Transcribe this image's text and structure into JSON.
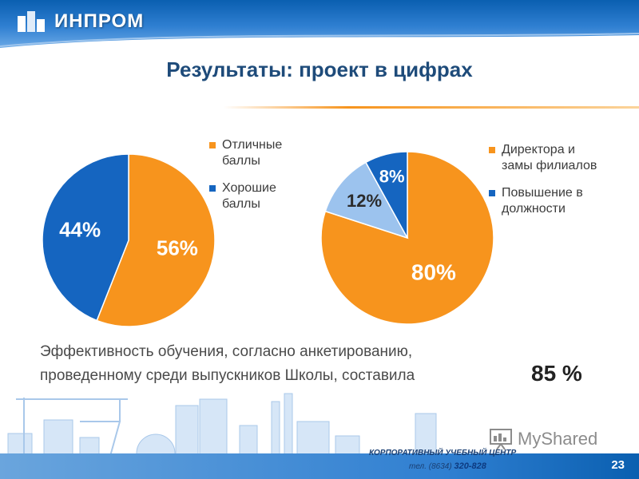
{
  "brand": {
    "name": "ИНПРОМ"
  },
  "title": "Результаты: проект в цифрах",
  "colors": {
    "orange": "#f7941d",
    "blue": "#1565c0",
    "light_blue": "#9cc3ee",
    "title": "#1e4b7a"
  },
  "chart_data": [
    {
      "type": "pie",
      "slices": [
        {
          "label": "Отличные баллы",
          "value": 56,
          "text": "56%",
          "color": "#f7941d"
        },
        {
          "label": "Хорошие баллы",
          "value": 44,
          "text": "44%",
          "color": "#1565c0"
        }
      ],
      "legend": [
        "Отличные баллы",
        "Хорошие баллы"
      ],
      "legend_position": "right"
    },
    {
      "type": "pie",
      "slices": [
        {
          "label": "Директора и замы филиалов",
          "value": 80,
          "text": "80%",
          "color": "#f7941d"
        },
        {
          "label": "",
          "value": 12,
          "text": "12%",
          "color": "#9cc3ee"
        },
        {
          "label": "Повышение в должности",
          "value": 8,
          "text": "8%",
          "color": "#1565c0"
        }
      ],
      "legend": [
        "Директора и замы филиалов",
        "Повышение в должности"
      ],
      "legend_position": "right"
    }
  ],
  "legend1": {
    "item1_line1": "Отличные",
    "item1_line2": "баллы",
    "item2_line1": "Хорошие",
    "item2_line2": "баллы"
  },
  "legend2": {
    "item1_line1": "Директора и",
    "item1_line2": "замы филиалов",
    "item2_line1": "Повышение в",
    "item2_line2": "должности"
  },
  "footnote": {
    "line1": "Эффективность обучения, согласно анкетированию,",
    "line2": "проведенному среди выпускников Школы, составила",
    "highlight": "85 %"
  },
  "footer": {
    "corporate": "КОРПОРАТИВНЫЙ УЧЕБНЫЙ ЦЕНТР",
    "phone_prefix": "тел. (8634)",
    "phone_number": "320-828",
    "watermark": "MyShared",
    "page_number": "23"
  }
}
